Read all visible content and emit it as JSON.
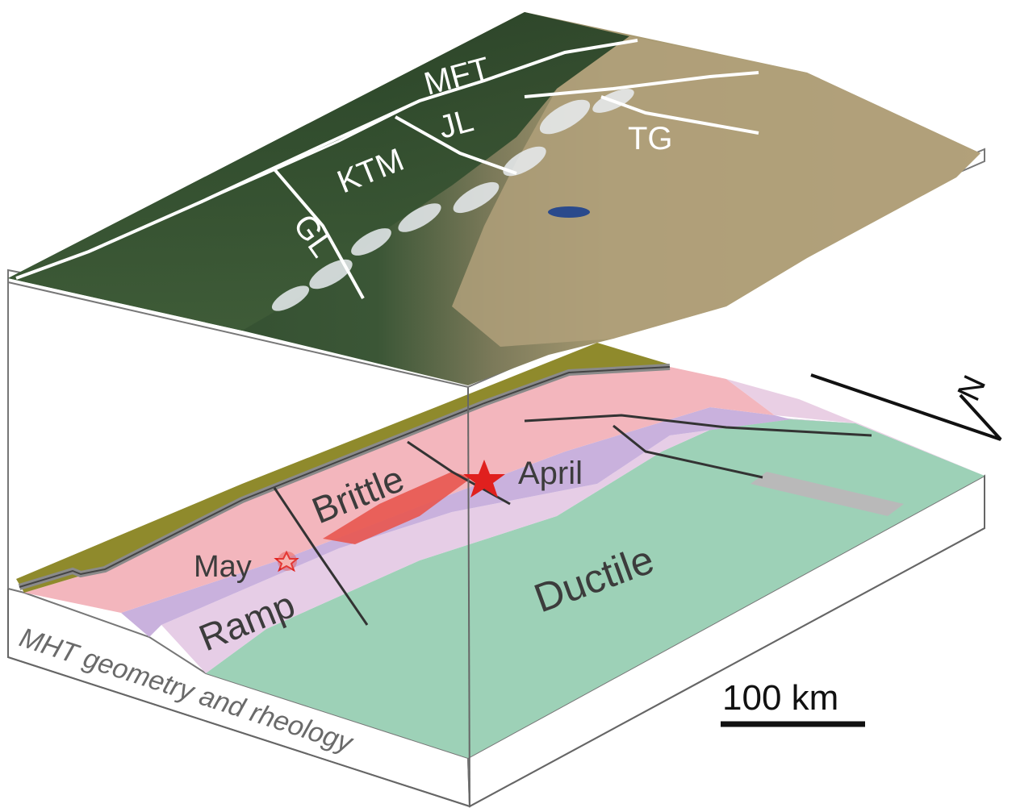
{
  "top_block": {
    "labels": {
      "mft": "MFT",
      "jl": "JL",
      "ktm": "KTM",
      "gl": "GL",
      "tg": "TG"
    }
  },
  "bottom_block": {
    "labels": {
      "brittle": "Brittle",
      "april": "April",
      "may": "May",
      "ramp": "Ramp",
      "ductile": "Ductile"
    },
    "side_caption": "MHT geometry and rheology"
  },
  "scale_bar": {
    "label": "100 km"
  },
  "north_arrow": {
    "label": "N"
  },
  "colors": {
    "brittle_zone": "#f3b6bd",
    "ramp_zone": "#c9b1dd",
    "transition_zone": "#e6cde6",
    "ductile_zone": "#9dd1b7",
    "surface_strip": "#8f8a2c",
    "rupture": "#e8564f",
    "star": "#e0201e",
    "forest": "#2f4a2d",
    "plateau": "#b0a07a",
    "snow": "#e9edf1",
    "fault_line": "#333333"
  }
}
